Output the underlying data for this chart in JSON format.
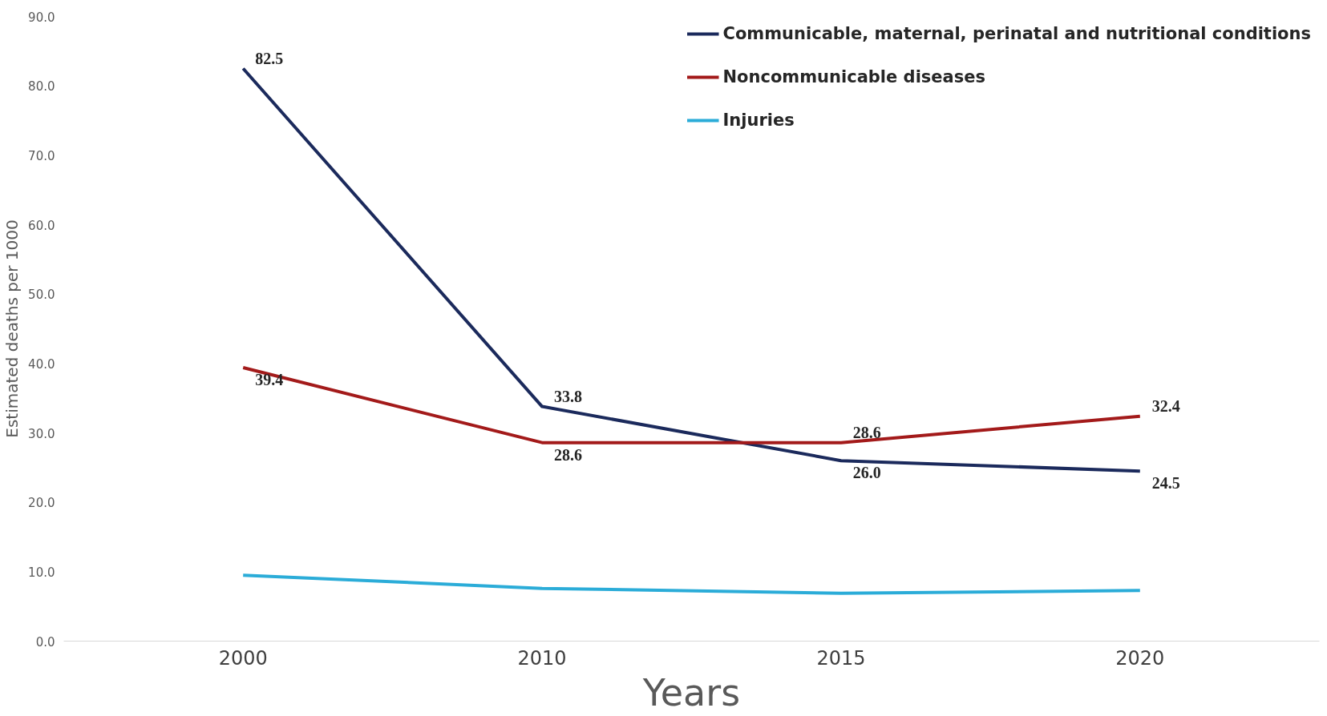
{
  "chart_data": {
    "type": "line",
    "xlabel": "Years",
    "ylabel": "Estimated deaths per 1000",
    "categories": [
      "2000",
      "2010",
      "2015",
      "2020"
    ],
    "ylim": [
      0,
      90
    ],
    "yticks": [
      {
        "value": 0,
        "label": "0.0"
      },
      {
        "value": 10,
        "label": "10.0"
      },
      {
        "value": 20,
        "label": "20.0"
      },
      {
        "value": 30,
        "label": "30.0"
      },
      {
        "value": 40,
        "label": "40.0"
      },
      {
        "value": 50,
        "label": "50.0"
      },
      {
        "value": 60,
        "label": "60.0"
      },
      {
        "value": 70,
        "label": "70.0"
      },
      {
        "value": 80,
        "label": "80.0"
      },
      {
        "value": 90,
        "label": "90.0"
      }
    ],
    "series": [
      {
        "name": "Communicable, maternal, perinatal and nutritional conditions",
        "color": "#1b2a5c",
        "values": [
          82.5,
          33.8,
          26.0,
          24.5
        ],
        "value_labels": [
          "82.5",
          "33.8",
          "26.0",
          "24.5"
        ]
      },
      {
        "name": "Noncommunicable diseases",
        "color": "#a31a1a",
        "values": [
          39.4,
          28.6,
          28.6,
          32.4
        ],
        "value_labels": [
          "39.4",
          "28.6",
          "28.6",
          "32.4"
        ]
      },
      {
        "name": "Injuries",
        "color": "#2bacd8",
        "values": [
          9.5,
          7.6,
          6.9,
          7.3
        ]
      }
    ],
    "grid": false,
    "legend": "top right",
    "marker": "none",
    "line_style": "solid"
  }
}
